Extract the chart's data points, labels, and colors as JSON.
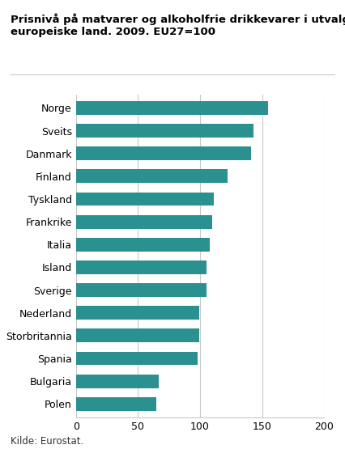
{
  "categories": [
    "Norge",
    "Sveits",
    "Danmark",
    "Finland",
    "Tyskland",
    "Frankrike",
    "Italia",
    "Island",
    "Sverige",
    "Nederland",
    "Storbritannia",
    "Spania",
    "Bulgaria",
    "Polen"
  ],
  "values": [
    155,
    143,
    141,
    122,
    111,
    110,
    108,
    105,
    105,
    99,
    99,
    98,
    67,
    65
  ],
  "bar_color": "#2a9090",
  "title_line1": "Prisnivå på matvarer og alkoholfrie drikkevarer i utvalgte",
  "title_line2": "europeiske land. 2009. EU27=100",
  "xlim": [
    0,
    200
  ],
  "xticks": [
    0,
    50,
    100,
    150,
    200
  ],
  "title_fontsize": 9.5,
  "label_fontsize": 9,
  "tick_fontsize": 9,
  "source_text": "Kilde: Eurostat.",
  "source_fontsize": 8.5,
  "background_color": "#ffffff",
  "grid_color": "#c8c8c8"
}
